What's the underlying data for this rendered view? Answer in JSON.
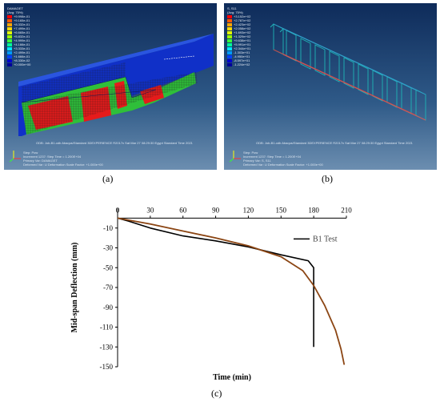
{
  "panels": {
    "a": {
      "label": "(a)",
      "legend_title": "DAMAGET\n(Avg: 75%)",
      "legend_values": [
        "+9.998e-01",
        "+9.165e-01",
        "+8.332e-01",
        "+7.499e-01",
        "+6.665e-01",
        "+5.832e-01",
        "+4.999e-01",
        "+4.166e-01",
        "+3.333e-01",
        "+2.499e-01",
        "+1.666e-01",
        "+8.330e-02",
        "+0.000e+00"
      ],
      "odb_line": "ODB: Job-B1.odb    Abaqus/Standard 3DEXPERIENCE R2017x    Sat Mar 27 08:29:30 Egypt Standard Time 2021",
      "step_line": "Step: Pow",
      "increment_line": "Increment   1237: Step Time =    1.200E+04",
      "primary_var_line": "Primary Var: DAMAGET",
      "deformed_var_line": "Deformed Var: U   Deformation Scale Factor: +1.000e+00"
    },
    "b": {
      "label": "(b)",
      "legend_title": "S, S11\n(Avg: 75%)",
      "legend_values": [
        "+3.152e+02",
        "+2.787e+02",
        "+2.423e+02",
        "+2.058e+02",
        "+1.693e+02",
        "+1.329e+02",
        "+9.638e+01",
        "+5.991e+01",
        "+2.344e+01",
        "-1.303e+01",
        "-4.950e+01",
        "-8.597e+01",
        "-1.224e+02"
      ],
      "odb_line": "ODB: Job-B1.odb    Abaqus/Standard 3DEXPERIENCE R2017x    Sat Mar 27 08:29:30 Egypt Standard Time 2021",
      "step_line": "Step: Pow",
      "increment_line": "Increment   1237: Step Time =    1.200E+04",
      "primary_var_line": "Primary Var: S, S11",
      "deformed_var_line": "Deformed Var: U   Deformation Scale Factor: +1.000e+00"
    },
    "c": {
      "label": "(c)"
    }
  },
  "colors": {
    "legend_scale": [
      "#ff0000",
      "#ff5a00",
      "#ffa500",
      "#ffd700",
      "#e5ff00",
      "#9bff00",
      "#3cff3c",
      "#00ff9b",
      "#00e5ff",
      "#009bff",
      "#0040ff",
      "#0000d0",
      "#00009a"
    ],
    "test_series": "#000000",
    "fe_series": "#8b4513"
  },
  "chart_data": {
    "type": "line",
    "xlabel": "Time (min)",
    "ylabel": "Mid-span Deflection (mm)",
    "xlim": [
      0,
      210
    ],
    "ylim": [
      -150,
      10
    ],
    "xticks": [
      0,
      30,
      60,
      90,
      120,
      150,
      180,
      210
    ],
    "yticks": [
      -10,
      -30,
      -50,
      -70,
      -90,
      -110,
      -130,
      -150
    ],
    "x_axis_position": "top",
    "legend_position": "top-right",
    "grid": false,
    "series": [
      {
        "name": "B1 Test",
        "x": [
          0,
          10,
          30,
          60,
          90,
          120,
          150,
          175,
          180,
          180
        ],
        "y": [
          0,
          -3,
          -10,
          -18,
          -23,
          -29,
          -37,
          -43,
          -50,
          -130
        ]
      },
      {
        "x": [
          0,
          30,
          60,
          90,
          120,
          150,
          170,
          180,
          190,
          200,
          205,
          208
        ],
        "y": [
          0,
          -6,
          -13,
          -20,
          -28,
          -39,
          -53,
          -68,
          -88,
          -113,
          -132,
          -148
        ]
      }
    ]
  }
}
